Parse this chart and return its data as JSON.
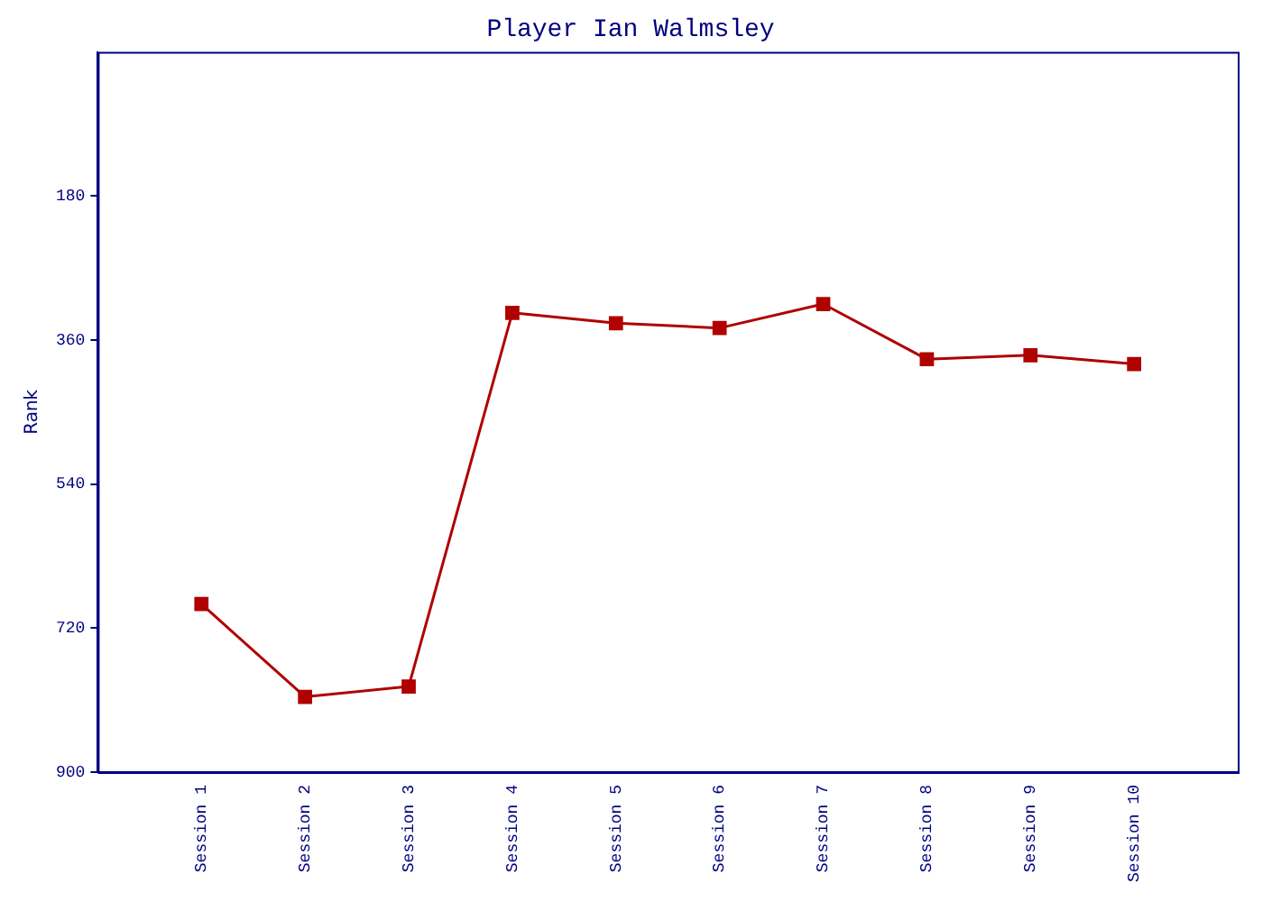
{
  "chart_data": {
    "type": "line",
    "title": "Player Ian Walmsley",
    "ylabel": "Rank",
    "categories": [
      "Session 1",
      "Session 2",
      "Session 3",
      "Session 4",
      "Session 5",
      "Session 6",
      "Session 7",
      "Session 8",
      "Session 9",
      "Session 10"
    ],
    "series": [
      {
        "color": "#b00000",
        "values": [
          690,
          806,
          793,
          326,
          339,
          345,
          315,
          384,
          379,
          390
        ]
      }
    ],
    "ylim": [
      900,
      0
    ],
    "yticks": [
      180,
      360,
      540,
      720,
      900
    ],
    "grid": false,
    "legend": false,
    "marker": "square",
    "line_style": "solid"
  }
}
